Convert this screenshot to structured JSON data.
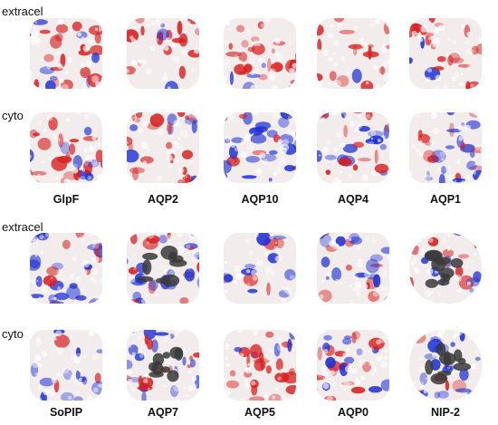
{
  "row_labels": {
    "top_extracel": "extracel",
    "top_cyto": "cyto",
    "bottom_extracel": "extracel",
    "bottom_cyto": "cyto"
  },
  "top_panel": {
    "proteins": [
      "GlpF",
      "AQP2",
      "AQP10",
      "AQP4",
      "AQP1"
    ]
  },
  "bottom_panel": {
    "proteins": [
      "SoPIP",
      "AQP7",
      "AQP5",
      "AQP0",
      "NIP-2"
    ]
  },
  "colors": {
    "negative": "#d81e1e",
    "positive": "#1c2fd6",
    "neutral": "#f2ecec",
    "ligand": "#3a3a3a"
  },
  "tiles": [
    {
      "protein": "GlpF",
      "side": "extracel",
      "dominant": "red",
      "dark": false
    },
    {
      "protein": "AQP2",
      "side": "extracel",
      "dominant": "red",
      "dark": false
    },
    {
      "protein": "AQP10",
      "side": "extracel",
      "dominant": "red",
      "dark": false
    },
    {
      "protein": "AQP4",
      "side": "extracel",
      "dominant": "red",
      "dark": false
    },
    {
      "protein": "AQP1",
      "side": "extracel",
      "dominant": "red",
      "dark": false
    },
    {
      "protein": "GlpF",
      "side": "cyto",
      "dominant": "mixed",
      "dark": false
    },
    {
      "protein": "AQP2",
      "side": "cyto",
      "dominant": "red",
      "dark": false
    },
    {
      "protein": "AQP10",
      "side": "cyto",
      "dominant": "blue",
      "dark": false
    },
    {
      "protein": "AQP4",
      "side": "cyto",
      "dominant": "mixed",
      "dark": false
    },
    {
      "protein": "AQP1",
      "side": "cyto",
      "dominant": "blue",
      "dark": false
    },
    {
      "protein": "SoPIP",
      "side": "extracel",
      "dominant": "blue",
      "dark": false
    },
    {
      "protein": "AQP7",
      "side": "extracel",
      "dominant": "mixed",
      "dark": true
    },
    {
      "protein": "AQP5",
      "side": "extracel",
      "dominant": "blue",
      "dark": false
    },
    {
      "protein": "AQP0",
      "side": "extracel",
      "dominant": "blue",
      "dark": false
    },
    {
      "protein": "NIP-2",
      "side": "extracel",
      "dominant": "mixed",
      "dark": true
    },
    {
      "protein": "SoPIP",
      "side": "cyto",
      "dominant": "blue",
      "dark": false
    },
    {
      "protein": "AQP7",
      "side": "cyto",
      "dominant": "mixed",
      "dark": true
    },
    {
      "protein": "AQP5",
      "side": "cyto",
      "dominant": "red",
      "dark": false
    },
    {
      "protein": "AQP0",
      "side": "cyto",
      "dominant": "mixed",
      "dark": false
    },
    {
      "protein": "NIP-2",
      "side": "cyto",
      "dominant": "blue",
      "dark": true
    }
  ]
}
